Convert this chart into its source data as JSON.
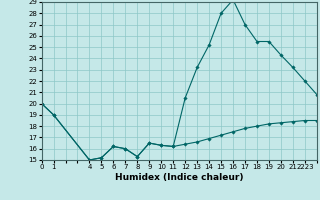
{
  "xlabel": "Humidex (Indice chaleur)",
  "bg_color": "#c5e8e8",
  "line_color": "#006666",
  "grid_color": "#8ec8c8",
  "upper_x": [
    0,
    1,
    4,
    5,
    6,
    7,
    8,
    9,
    10,
    11,
    12,
    13,
    14,
    15,
    16,
    17,
    18,
    19,
    20,
    21,
    22,
    23
  ],
  "upper_y": [
    20.0,
    19.0,
    15.0,
    15.2,
    16.2,
    16.0,
    15.3,
    16.5,
    16.3,
    16.2,
    20.5,
    23.2,
    25.2,
    28.0,
    29.2,
    27.0,
    25.5,
    25.5,
    24.3,
    23.2,
    22.0,
    20.8
  ],
  "lower_x": [
    0,
    1,
    4,
    5,
    6,
    7,
    8,
    9,
    10,
    11,
    12,
    13,
    14,
    15,
    16,
    17,
    18,
    19,
    20,
    21,
    22,
    23
  ],
  "lower_y": [
    20.0,
    19.0,
    15.0,
    15.2,
    16.2,
    16.0,
    15.3,
    16.5,
    16.3,
    16.2,
    16.4,
    16.6,
    16.9,
    17.2,
    17.5,
    17.8,
    18.0,
    18.2,
    18.3,
    18.4,
    18.5,
    18.5
  ],
  "xlim": [
    0,
    23
  ],
  "ylim": [
    15,
    29
  ],
  "yticks": [
    15,
    16,
    17,
    18,
    19,
    20,
    21,
    22,
    23,
    24,
    25,
    26,
    27,
    28,
    29
  ],
  "xtick_labels": [
    "0",
    "1",
    "",
    "",
    "4",
    "5",
    "6",
    "7",
    "8",
    "9",
    "10",
    "11",
    "12",
    "13",
    "14",
    "15",
    "16",
    "17",
    "18",
    "19",
    "20",
    "21",
    "2223"
  ],
  "xtick_positions": [
    0,
    1,
    2,
    3,
    4,
    5,
    6,
    7,
    8,
    9,
    10,
    11,
    12,
    13,
    14,
    15,
    16,
    17,
    18,
    19,
    20,
    21,
    22
  ],
  "tick_fontsize": 5.0,
  "xlabel_fontsize": 6.5
}
